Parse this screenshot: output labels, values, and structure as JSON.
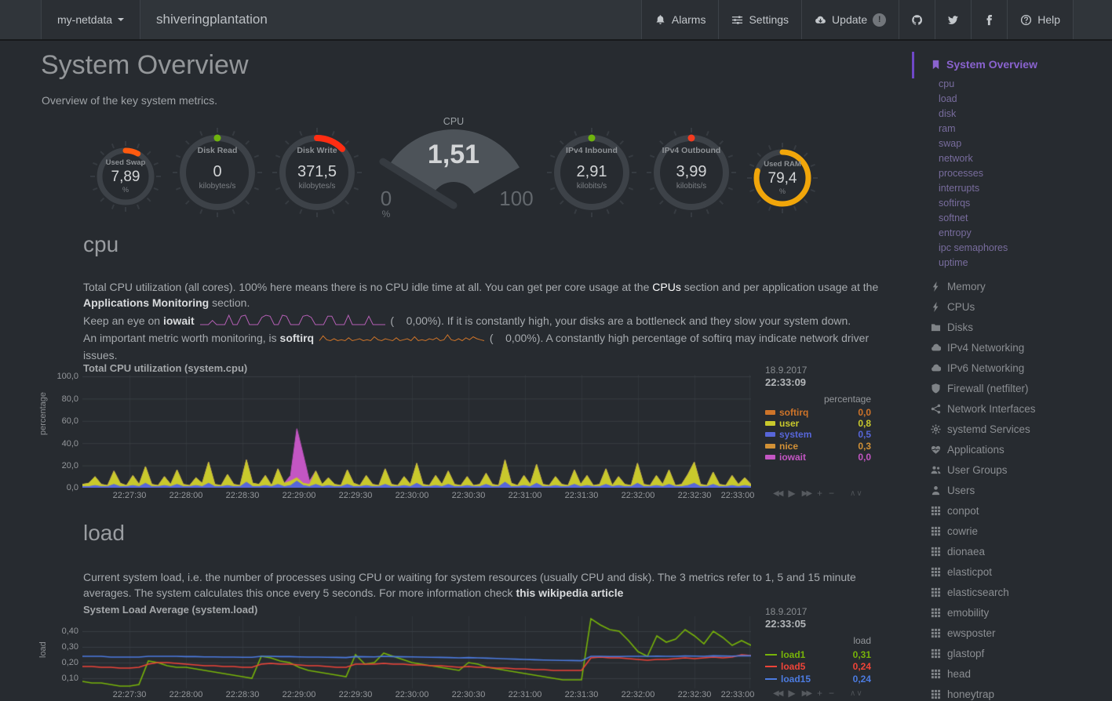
{
  "navbar": {
    "menu_label": "my-netdata",
    "brand": "shiveringplantation",
    "alarms_label": "Alarms",
    "settings_label": "Settings",
    "update_label": "Update",
    "update_badge": "!",
    "help_label": "Help"
  },
  "page": {
    "title": "System Overview",
    "subtitle": "Overview of the key system metrics."
  },
  "gauges": [
    {
      "label": "Used Swap",
      "value": "7,89",
      "unit": "%",
      "arc_color": "#ff5a0f",
      "arc_pct": 7.89,
      "size": "small"
    },
    {
      "label": "Disk Read",
      "value": "0",
      "unit": "kilobytes/s",
      "arc_color": "#6fb30e",
      "arc_pct": 0,
      "size": "large"
    },
    {
      "label": "Disk Write",
      "value": "371,5",
      "unit": "kilobytes/s",
      "arc_color": "#ff2d12",
      "arc_pct": 13,
      "size": "large"
    },
    {
      "label": "IPv4 Inbound",
      "value": "2,91",
      "unit": "kilobits/s",
      "arc_color": "#6fb30e",
      "arc_pct": 0,
      "size": "large"
    },
    {
      "label": "IPv4 Outbound",
      "value": "3,99",
      "unit": "kilobits/s",
      "arc_color": "#f43b1f",
      "arc_pct": 0,
      "size": "large"
    },
    {
      "label": "Used RAM",
      "value": "79,4",
      "unit": "%",
      "arc_color": "#f1a60a",
      "arc_pct": 79.4,
      "size": "small"
    }
  ],
  "cpu_gauge": {
    "title": "CPU",
    "value": "1,51",
    "min": "0",
    "max": "100",
    "unit": "%"
  },
  "cpu_section": {
    "heading": "cpu",
    "p1a": "Total CPU utilization (all cores). 100% here means there is no CPU idle time at all. You can get per core usage at the ",
    "p1_link": "CPUs",
    "p1b": " section and per application usage at the ",
    "p1_bold": "Applications Monitoring",
    "p1c": " section.",
    "p2a": "Keep an eye on ",
    "p2_bold": "iowait",
    "p2b": " (    0,00%). If it is constantly high, your disks are a bottleneck and they slow your system down.",
    "p3a": "An important metric worth monitoring, is ",
    "p3_bold": "softirq",
    "p3b": " (    0,00%). A constantly high percentage of softirq may indicate network driver issues."
  },
  "load_section": {
    "heading": "load",
    "p1": "Current system load, i.e. the number of processes using CPU or waiting for system resources (usually CPU and disk). The 3 metrics refer to 1, 5 and 15 minute averages. The system calculates this once every 5 seconds. For more information check ",
    "p1_link": "this wikipedia article"
  },
  "charts": {
    "cpu": {
      "title": "Total CPU utilization (system.cpu)",
      "date": "18.9.2017",
      "time": "22:33:09",
      "units": "percentage",
      "ylabel": "percentage",
      "y_labels": [
        "100,0",
        "80,0",
        "60,0",
        "40,0",
        "20,0",
        "0,0"
      ],
      "legend": [
        {
          "name": "softirq",
          "value": "0,0",
          "color": "#CE7429"
        },
        {
          "name": "user",
          "value": "0,8",
          "color": "#C9C92C"
        },
        {
          "name": "system",
          "value": "0,5",
          "color": "#5766D9"
        },
        {
          "name": "nice",
          "value": "0,3",
          "color": "#D29136"
        },
        {
          "name": "iowait",
          "value": "0,0",
          "color": "#C356C3"
        }
      ]
    },
    "load": {
      "title": "System Load Average (system.load)",
      "date": "18.9.2017",
      "time": "22:33:05",
      "units": "load",
      "ylabel": "load",
      "y_labels": [
        "0,40",
        "0,30",
        "0,20",
        "0,10"
      ],
      "legend": [
        {
          "name": "load1",
          "value": "0,31",
          "color": "#77B309"
        },
        {
          "name": "load5",
          "value": "0,24",
          "color": "#EF4438"
        },
        {
          "name": "load15",
          "value": "0,24",
          "color": "#4C7BE0"
        }
      ]
    },
    "x_labels": [
      "22:27:30",
      "22:28:00",
      "22:28:30",
      "22:29:00",
      "22:29:30",
      "22:30:00",
      "22:30:30",
      "22:31:00",
      "22:31:30",
      "22:32:00",
      "22:32:30",
      "22:33:00"
    ],
    "toolbar": [
      {
        "name": "backward",
        "glyph": "◀◀"
      },
      {
        "name": "play",
        "glyph": "▶"
      },
      {
        "name": "forward",
        "glyph": "▶▶"
      },
      {
        "name": "zoom-in",
        "glyph": "+"
      },
      {
        "name": "zoom-out",
        "glyph": "−"
      },
      {
        "name": "resize",
        "glyph": "∧∨"
      }
    ]
  },
  "chart_data": [
    {
      "id": "system.cpu",
      "type": "area",
      "stacked": true,
      "title": "Total CPU utilization (system.cpu)",
      "ylabel": "percentage",
      "ylim": [
        0,
        100
      ],
      "x_range": [
        "22:27:05",
        "22:33:00"
      ],
      "series": [
        {
          "name": "system",
          "color": "#5766D9",
          "values": [
            1,
            1,
            2,
            1,
            1,
            3,
            1,
            1,
            2,
            1,
            4,
            1,
            1,
            2,
            1,
            3,
            1,
            1,
            2,
            1,
            4,
            1,
            1,
            2,
            1,
            1,
            5,
            1,
            1,
            2,
            1,
            3,
            1,
            2,
            6,
            2,
            1,
            3,
            1,
            2,
            1,
            1,
            3,
            1,
            1,
            2,
            1,
            1,
            3,
            1,
            1,
            2,
            1,
            4,
            1,
            1,
            2,
            1,
            3,
            1,
            1,
            2,
            1,
            1,
            3,
            1,
            1,
            5,
            1,
            1,
            2,
            1,
            4,
            1,
            1,
            2,
            1,
            1,
            3,
            1,
            2,
            1,
            1,
            3,
            1,
            2,
            1,
            1,
            4,
            1,
            1,
            2,
            1,
            3,
            1,
            1,
            2,
            4,
            1,
            1,
            3,
            1,
            1,
            2,
            1,
            2,
            1
          ]
        },
        {
          "name": "user",
          "color": "#C9C92C",
          "values": [
            2,
            3,
            8,
            2,
            1,
            12,
            3,
            1,
            9,
            2,
            15,
            2,
            1,
            8,
            2,
            13,
            2,
            1,
            7,
            3,
            19,
            2,
            1,
            10,
            2,
            1,
            20,
            3,
            2,
            9,
            1,
            14,
            3,
            4,
            3,
            2,
            2,
            12,
            2,
            7,
            2,
            1,
            13,
            3,
            1,
            9,
            2,
            1,
            14,
            2,
            1,
            8,
            2,
            18,
            2,
            1,
            9,
            2,
            12,
            2,
            1,
            8,
            1,
            2,
            10,
            2,
            1,
            20,
            3,
            1,
            9,
            2,
            17,
            2,
            1,
            8,
            2,
            1,
            13,
            2,
            9,
            1,
            2,
            14,
            1,
            8,
            2,
            1,
            18,
            2,
            1,
            9,
            2,
            13,
            1,
            2,
            10,
            19,
            2,
            1,
            11,
            2,
            1,
            9,
            2,
            7,
            2
          ]
        },
        {
          "name": "iowait",
          "color": "#C356C3",
          "values": [
            0,
            0,
            0,
            0,
            0,
            0,
            0,
            0,
            0,
            0,
            0,
            0,
            0,
            0,
            0,
            0,
            0,
            0,
            0,
            0,
            0,
            0,
            0,
            0,
            0,
            0,
            0,
            0,
            0,
            0,
            0,
            0,
            0,
            5,
            44,
            26,
            3,
            0,
            0,
            0,
            0,
            0,
            0,
            0,
            0,
            0,
            0,
            0,
            0,
            0,
            0,
            0,
            0,
            0,
            0,
            0,
            0,
            0,
            0,
            0,
            0,
            0,
            0,
            0,
            0,
            0,
            0,
            0,
            0,
            0,
            0,
            0,
            0,
            0,
            0,
            0,
            0,
            0,
            0,
            0,
            0,
            0,
            0,
            0,
            0,
            0,
            0,
            0,
            0,
            0,
            0,
            0,
            0,
            0,
            0,
            0,
            0,
            0,
            0,
            0,
            0,
            0,
            0,
            0,
            0,
            0,
            0
          ]
        }
      ]
    },
    {
      "id": "system.load",
      "type": "line",
      "title": "System Load Average (system.load)",
      "ylabel": "load",
      "ylim": [
        0.05,
        0.5
      ],
      "x_range": [
        "22:27:05",
        "22:33:00"
      ],
      "series": [
        {
          "name": "load1",
          "color": "#77B309",
          "values": [
            0.08,
            0.07,
            0.07,
            0.06,
            0.05,
            0.05,
            0.06,
            0.21,
            0.2,
            0.18,
            0.17,
            0.17,
            0.16,
            0.15,
            0.14,
            0.13,
            0.12,
            0.11,
            0.1,
            0.24,
            0.23,
            0.21,
            0.2,
            0.17,
            0.15,
            0.14,
            0.13,
            0.12,
            0.11,
            0.25,
            0.19,
            0.2,
            0.26,
            0.24,
            0.22,
            0.2,
            0.19,
            0.18,
            0.17,
            0.16,
            0.15,
            0.2,
            0.19,
            0.17,
            0.16,
            0.15,
            0.14,
            0.13,
            0.12,
            0.11,
            0.1,
            0.09,
            0.09,
            0.09,
            0.48,
            0.44,
            0.41,
            0.4,
            0.34,
            0.27,
            0.24,
            0.37,
            0.33,
            0.35,
            0.41,
            0.37,
            0.32,
            0.4,
            0.36,
            0.31,
            0.34,
            0.31
          ]
        },
        {
          "name": "load5",
          "color": "#EF4438",
          "values": [
            0.175,
            0.175,
            0.17,
            0.17,
            0.165,
            0.165,
            0.17,
            0.19,
            0.2,
            0.2,
            0.195,
            0.19,
            0.185,
            0.18,
            0.18,
            0.175,
            0.175,
            0.17,
            0.17,
            0.19,
            0.195,
            0.19,
            0.19,
            0.185,
            0.18,
            0.18,
            0.175,
            0.17,
            0.17,
            0.19,
            0.19,
            0.19,
            0.195,
            0.19,
            0.19,
            0.185,
            0.185,
            0.18,
            0.18,
            0.175,
            0.17,
            0.175,
            0.17,
            0.17,
            0.165,
            0.165,
            0.16,
            0.16,
            0.155,
            0.155,
            0.15,
            0.15,
            0.15,
            0.15,
            0.23,
            0.235,
            0.23,
            0.23,
            0.225,
            0.22,
            0.215,
            0.22,
            0.22,
            0.225,
            0.23,
            0.225,
            0.23,
            0.235,
            0.23,
            0.235,
            0.25,
            0.245
          ]
        },
        {
          "name": "load15",
          "color": "#4C7BE0",
          "values": [
            0.24,
            0.24,
            0.24,
            0.235,
            0.235,
            0.235,
            0.235,
            0.24,
            0.24,
            0.24,
            0.24,
            0.238,
            0.238,
            0.236,
            0.236,
            0.235,
            0.235,
            0.234,
            0.234,
            0.24,
            0.24,
            0.238,
            0.238,
            0.236,
            0.235,
            0.235,
            0.234,
            0.233,
            0.232,
            0.238,
            0.237,
            0.236,
            0.24,
            0.238,
            0.237,
            0.236,
            0.235,
            0.234,
            0.233,
            0.232,
            0.23,
            0.232,
            0.23,
            0.228,
            0.226,
            0.224,
            0.222,
            0.22,
            0.218,
            0.216,
            0.215,
            0.214,
            0.213,
            0.212,
            0.24,
            0.24,
            0.239,
            0.239,
            0.24,
            0.24,
            0.24,
            0.241,
            0.24,
            0.24,
            0.242,
            0.241,
            0.24,
            0.243,
            0.242,
            0.241,
            0.243,
            0.243
          ]
        }
      ]
    },
    {
      "id": "iowait_sparkline",
      "type": "line",
      "color": "#B45FB4",
      "values": [
        0,
        0,
        0,
        4,
        0,
        0,
        0,
        9,
        0,
        0,
        8,
        9,
        0,
        0,
        0,
        7,
        9,
        8,
        0,
        0,
        9,
        8,
        0,
        0,
        0,
        8,
        9,
        7,
        0,
        0,
        0,
        8,
        8,
        0,
        0,
        0,
        9,
        0,
        0,
        0,
        0,
        8,
        0,
        0,
        0,
        0
      ]
    },
    {
      "id": "softirq_sparkline",
      "type": "line",
      "color": "#CE7429",
      "values": [
        2,
        7,
        3,
        2,
        4,
        2,
        3,
        2,
        5,
        2,
        3,
        4,
        2,
        3,
        2,
        6,
        3,
        2,
        4,
        3,
        2,
        5,
        2,
        3,
        4,
        2,
        6,
        2,
        3,
        2,
        4,
        3,
        5,
        2,
        3,
        8,
        3,
        2,
        4,
        2,
        5,
        3,
        6,
        4,
        3,
        2
      ]
    }
  ],
  "sidebar": {
    "active": {
      "label": "System Overview",
      "icon": "bookmark"
    },
    "sub_items": [
      "cpu",
      "load",
      "disk",
      "ram",
      "swap",
      "network",
      "processes",
      "interrupts",
      "softirqs",
      "softnet",
      "entropy",
      "ipc semaphores",
      "uptime"
    ],
    "items": [
      {
        "icon": "bolt",
        "label": "Memory"
      },
      {
        "icon": "bolt",
        "label": "CPUs"
      },
      {
        "icon": "folder",
        "label": "Disks"
      },
      {
        "icon": "cloud",
        "label": "IPv4 Networking"
      },
      {
        "icon": "cloud",
        "label": "IPv6 Networking"
      },
      {
        "icon": "shield",
        "label": "Firewall (netfilter)"
      },
      {
        "icon": "share",
        "label": "Network Interfaces"
      },
      {
        "icon": "cogs",
        "label": "systemd Services"
      },
      {
        "icon": "heartbeat",
        "label": "Applications"
      },
      {
        "icon": "users",
        "label": "User Groups"
      },
      {
        "icon": "user",
        "label": "Users"
      },
      {
        "icon": "grid",
        "label": "conpot"
      },
      {
        "icon": "grid",
        "label": "cowrie"
      },
      {
        "icon": "grid",
        "label": "dionaea"
      },
      {
        "icon": "grid",
        "label": "elasticpot"
      },
      {
        "icon": "grid",
        "label": "elasticsearch"
      },
      {
        "icon": "grid",
        "label": "emobility"
      },
      {
        "icon": "grid",
        "label": "ewsposter"
      },
      {
        "icon": "grid",
        "label": "glastopf"
      },
      {
        "icon": "grid",
        "label": "head"
      },
      {
        "icon": "grid",
        "label": "honeytrap"
      }
    ]
  }
}
